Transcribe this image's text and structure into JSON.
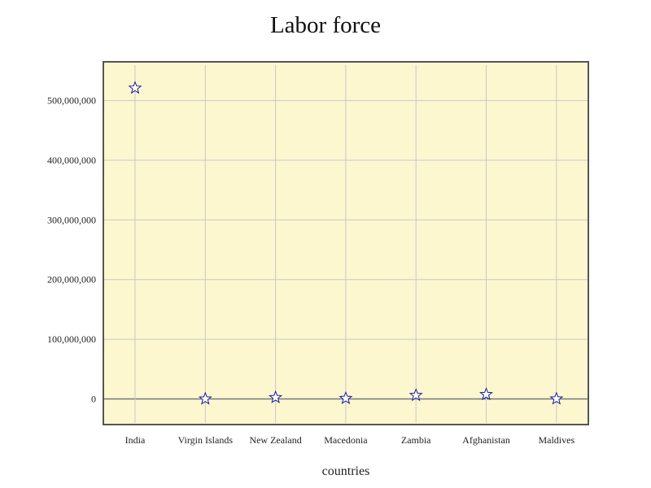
{
  "chart_data": {
    "type": "scatter",
    "title": "Labor force",
    "xlabel": "countries",
    "ylabel": "",
    "categories": [
      "India",
      "Virgin Islands",
      "New Zealand",
      "Macedonia",
      "Zambia",
      "Afghanistan",
      "Maldives"
    ],
    "series": [
      {
        "values": [
          521000000,
          50000,
          2400000,
          950000,
          6000000,
          7500000,
          150000
        ]
      }
    ],
    "ylim": [
      -43000000,
      565000000
    ],
    "yticks": [
      0,
      100000000,
      200000000,
      300000000,
      400000000,
      500000000
    ],
    "ytick_labels": [
      "0",
      "100,000,000",
      "200,000,000",
      "300,000,000",
      "400,000,000",
      "500,000,000"
    ],
    "grid": true,
    "marker": "star",
    "colors": {
      "plot_background": "#fdf7d0",
      "plot_border": "#555555",
      "grid": "#c8c8c8",
      "zero_line": "#777777",
      "marker_stroke": "#1a1aa0",
      "marker_fill": "#ffffff"
    }
  }
}
